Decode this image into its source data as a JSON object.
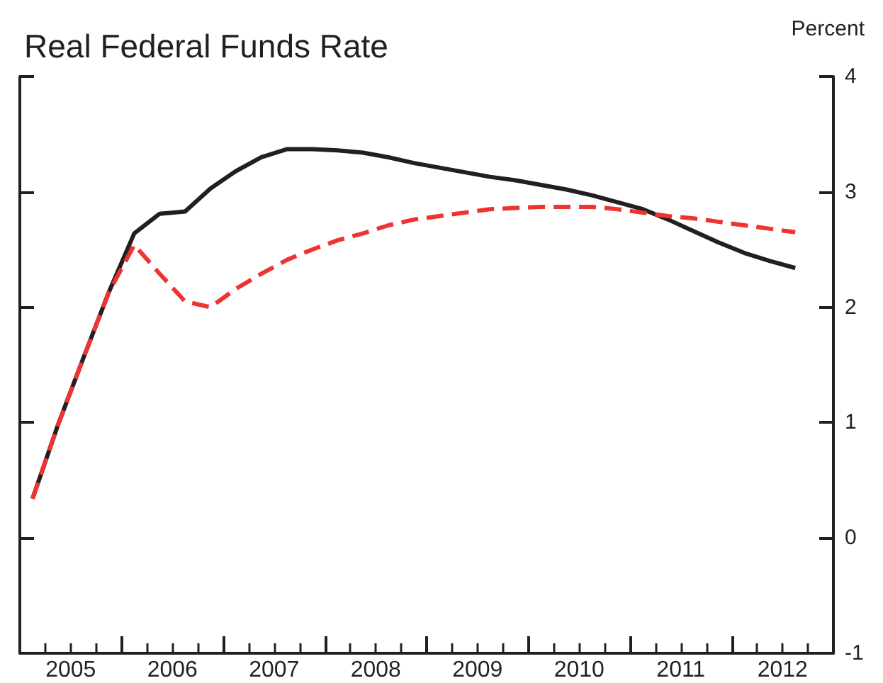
{
  "chart_data": {
    "type": "line",
    "title": "Real Federal Funds Rate",
    "ylabel": "Percent",
    "x": [
      2005.125,
      2005.375,
      2005.625,
      2005.875,
      2006.125,
      2006.375,
      2006.625,
      2006.875,
      2007.125,
      2007.375,
      2007.625,
      2007.875,
      2008.125,
      2008.375,
      2008.625,
      2008.875,
      2009.125,
      2009.375,
      2009.625,
      2009.875,
      2010.125,
      2010.375,
      2010.625,
      2010.875,
      2011.125,
      2011.375,
      2011.625,
      2011.875,
      2012.125,
      2012.375,
      2012.625
    ],
    "series": [
      {
        "color": "#231f20",
        "line_style": "solid",
        "values": [
          0.34,
          0.98,
          1.56,
          2.13,
          2.64,
          2.81,
          2.83,
          3.03,
          3.18,
          3.3,
          3.37,
          3.37,
          3.36,
          3.34,
          3.3,
          3.25,
          3.21,
          3.17,
          3.13,
          3.1,
          3.06,
          3.02,
          2.97,
          2.91,
          2.85,
          2.76,
          2.66,
          2.56,
          2.47,
          2.4,
          2.34
        ]
      },
      {
        "color": "#ee3333",
        "line_style": "dashed",
        "values": [
          0.34,
          0.98,
          1.56,
          2.13,
          2.54,
          2.29,
          2.05,
          2.0,
          2.16,
          2.29,
          2.41,
          2.5,
          2.58,
          2.64,
          2.71,
          2.76,
          2.79,
          2.82,
          2.85,
          2.86,
          2.87,
          2.87,
          2.87,
          2.85,
          2.82,
          2.79,
          2.77,
          2.74,
          2.71,
          2.68,
          2.65
        ]
      }
    ],
    "xlim": [
      2005,
      2013
    ],
    "xticks": [
      {
        "value": 2005,
        "label": null
      },
      {
        "value": 2005.5,
        "label": "2005"
      },
      {
        "value": 2006,
        "label": null
      },
      {
        "value": 2006.5,
        "label": "2006"
      },
      {
        "value": 2007,
        "label": null
      },
      {
        "value": 2007.5,
        "label": "2007"
      },
      {
        "value": 2008,
        "label": null
      },
      {
        "value": 2008.5,
        "label": "2008"
      },
      {
        "value": 2009,
        "label": null
      },
      {
        "value": 2009.5,
        "label": "2009"
      },
      {
        "value": 2010,
        "label": null
      },
      {
        "value": 2010.5,
        "label": "2010"
      },
      {
        "value": 2011,
        "label": null
      },
      {
        "value": 2011.5,
        "label": "2011"
      },
      {
        "value": 2012,
        "label": null
      },
      {
        "value": 2012.5,
        "label": "2012"
      },
      {
        "value": 2013,
        "label": null
      }
    ],
    "ylim": [
      -1,
      4
    ],
    "yticks": [
      -1,
      0,
      1,
      2,
      3,
      4
    ],
    "grid": false,
    "marker": "none"
  }
}
